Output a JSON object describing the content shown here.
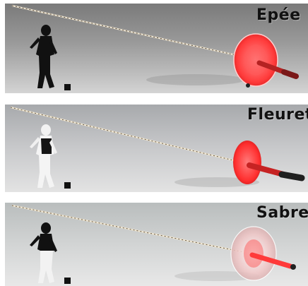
{
  "panels": [
    {
      "title": "Epée",
      "spec_lines": [
        "",
        ""
      ],
      "caption": "",
      "colors": {
        "guard": "#ff3b3b",
        "grip": "#b52222",
        "pommel": "#222222",
        "fencer": "#111111"
      }
    },
    {
      "title": "Fleuret",
      "spec_lines": [
        "",
        ""
      ],
      "caption": "",
      "colors": {
        "guard": "#ff2f2f",
        "grip": "#c62323",
        "pommel": "#1f1f1f",
        "fencer": "#ffffff"
      }
    },
    {
      "title": "Sabre",
      "spec_lines": [
        "",
        ""
      ],
      "caption": "",
      "colors": {
        "guard": "#f2b0b0",
        "grip": "#ff3a3a",
        "pommel": "#202020",
        "fencer": "#111111"
      }
    }
  ]
}
